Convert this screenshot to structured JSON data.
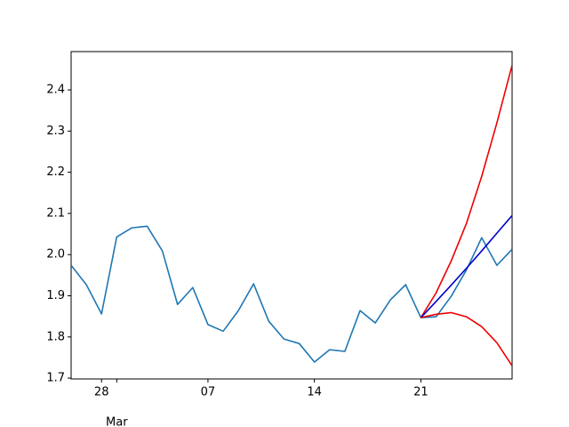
{
  "chart_data": {
    "type": "line",
    "x": [
      "02-26",
      "02-27",
      "02-28",
      "03-01",
      "03-02",
      "03-03",
      "03-04",
      "03-05",
      "03-06",
      "03-07",
      "03-08",
      "03-09",
      "03-10",
      "03-11",
      "03-12",
      "03-13",
      "03-14",
      "03-15",
      "03-16",
      "03-17",
      "03-18",
      "03-19",
      "03-20",
      "03-21",
      "03-22",
      "03-23",
      "03-24",
      "03-25",
      "03-26",
      "03-27"
    ],
    "series": [
      {
        "color": "#1f77b4",
        "values": [
          1.974,
          1.927,
          1.856,
          2.043,
          2.065,
          2.069,
          2.009,
          1.879,
          1.92,
          1.83,
          1.814,
          1.864,
          1.929,
          1.838,
          1.795,
          1.784,
          1.739,
          1.769,
          1.765,
          1.864,
          1.834,
          1.89,
          1.927,
          1.847,
          1.849,
          1.899,
          1.963,
          2.041,
          1.974,
          2.013
        ]
      },
      {
        "color": "#ee0000",
        "values": [
          null,
          null,
          null,
          null,
          null,
          null,
          null,
          null,
          null,
          null,
          null,
          null,
          null,
          null,
          null,
          null,
          null,
          null,
          null,
          null,
          null,
          null,
          null,
          1.847,
          1.907,
          1.985,
          2.076,
          2.19,
          2.32,
          2.46
        ]
      },
      {
        "color": "#0000cd",
        "values": [
          null,
          null,
          null,
          null,
          null,
          null,
          null,
          null,
          null,
          null,
          null,
          null,
          null,
          null,
          null,
          null,
          null,
          null,
          null,
          null,
          null,
          null,
          null,
          1.847,
          1.886,
          1.926,
          1.967,
          2.009,
          2.052,
          2.095
        ]
      },
      {
        "color": "#ee0000",
        "values": [
          null,
          null,
          null,
          null,
          null,
          null,
          null,
          null,
          null,
          null,
          null,
          null,
          null,
          null,
          null,
          null,
          null,
          null,
          null,
          null,
          null,
          null,
          null,
          1.847,
          1.855,
          1.859,
          1.849,
          1.825,
          1.786,
          1.73
        ]
      }
    ],
    "xlim": [
      "02-26",
      "03-27"
    ],
    "xticks": [
      {
        "value": "02-28",
        "label": "28"
      },
      {
        "value": "03-07",
        "label": "07"
      },
      {
        "value": "03-14",
        "label": "14"
      },
      {
        "value": "03-21",
        "label": "21"
      }
    ],
    "xticks_secondary": [
      {
        "value": "03-01",
        "label": "Mar"
      }
    ],
    "ylim": [
      1.698,
      2.493
    ],
    "yticks": [
      1.7,
      1.8,
      1.9,
      {
        "value": 2,
        "label": "2.0"
      },
      2.1,
      2.2,
      2.3,
      2.4
    ]
  }
}
